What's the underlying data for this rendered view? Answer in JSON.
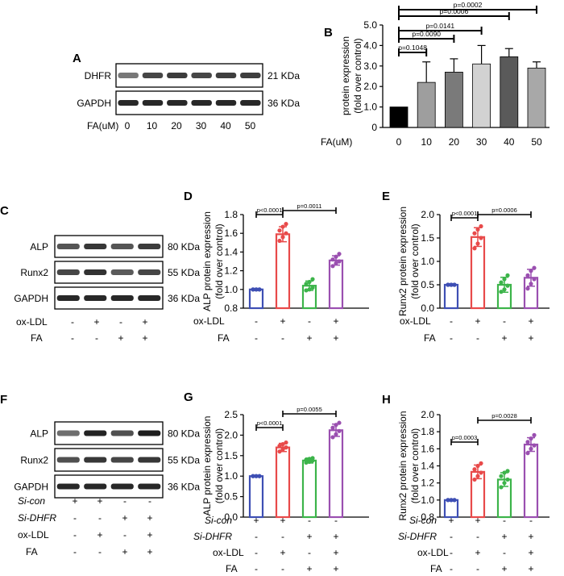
{
  "panels": {
    "A": {
      "letter": "A",
      "rows": [
        {
          "name": "DHFR",
          "kda": "21 KDa"
        },
        {
          "name": "GAPDH",
          "kda": "36 KDa"
        }
      ],
      "lane_label": "FA(uM)",
      "lanes": [
        "0",
        "10",
        "20",
        "30",
        "40",
        "50"
      ]
    },
    "C": {
      "letter": "C",
      "rows": [
        {
          "name": "ALP",
          "kda": "80 KDa"
        },
        {
          "name": "Runx2",
          "kda": "55 KDa"
        },
        {
          "name": "GAPDH",
          "kda": "36 KDa"
        }
      ],
      "treat_rows": [
        {
          "label": "ox-LDL",
          "signs": [
            "-",
            "+",
            "-",
            "+"
          ]
        },
        {
          "label": "FA",
          "signs": [
            "-",
            "-",
            "+",
            "+"
          ]
        }
      ]
    },
    "F": {
      "letter": "F",
      "rows": [
        {
          "name": "ALP",
          "kda": "80 KDa"
        },
        {
          "name": "Runx2",
          "kda": "55 KDa"
        },
        {
          "name": "GAPDH",
          "kda": "36 KDa"
        }
      ],
      "treat_rows": [
        {
          "label": "Si-con",
          "signs": [
            "+",
            "+",
            "-",
            "-"
          ]
        },
        {
          "label": "Si-DHFR",
          "signs": [
            "-",
            "-",
            "+",
            "+"
          ]
        },
        {
          "label": "ox-LDL",
          "signs": [
            "-",
            "+",
            "-",
            "+"
          ]
        },
        {
          "label": "FA",
          "signs": [
            "-",
            "-",
            "+",
            "+"
          ]
        }
      ]
    }
  },
  "chart_data": [
    {
      "panel": "B",
      "type": "bar",
      "ylabel": "protein expression (fold over control)",
      "ylabel_lines": [
        "protein expression",
        "(fold over control)"
      ],
      "ylim": [
        0,
        5
      ],
      "yticks": [
        "0",
        "1.0",
        "2.0",
        "3.0",
        "4.0",
        "5.0"
      ],
      "x_title": "FA(uM)",
      "categories": [
        "0",
        "10",
        "20",
        "30",
        "40",
        "50"
      ],
      "values": [
        1.0,
        2.2,
        2.7,
        3.1,
        3.45,
        2.9
      ],
      "errors": [
        0,
        1.0,
        0.65,
        0.9,
        0.4,
        0.3
      ],
      "colors": [
        "#000000",
        "#9e9e9e",
        "#7a7a7a",
        "#d2d2d2",
        "#5a5a5a",
        "#a8a8a8"
      ],
      "pvalues": [
        "p=0.1048",
        "p=0.0090",
        "p=0.0141",
        "p=0.0006",
        "p=0.0002"
      ]
    },
    {
      "panel": "D",
      "type": "bar",
      "style": "dots",
      "ylabel": "ALP protein expression (fold over control)",
      "ylabel_lines": [
        "ALP protein expression",
        "(fold over control)"
      ],
      "ylim": [
        0.8,
        1.8
      ],
      "yticks": [
        "0.8",
        "1.0",
        "1.2",
        "1.4",
        "1.6",
        "1.8"
      ],
      "values": [
        1.0,
        1.59,
        1.04,
        1.31
      ],
      "errors": [
        0.01,
        0.08,
        0.05,
        0.05
      ],
      "points": [
        [
          1.0,
          1.0,
          1.0,
          1.0,
          1.0,
          1.0
        ],
        [
          1.52,
          1.56,
          1.6,
          1.63,
          1.67,
          1.7
        ],
        [
          0.99,
          1.0,
          1.02,
          1.06,
          1.08,
          1.11
        ],
        [
          1.25,
          1.28,
          1.3,
          1.32,
          1.35,
          1.38
        ]
      ],
      "colors": [
        "#3e4fb4",
        "#e84a4a",
        "#3cb44a",
        "#9a4fb0"
      ],
      "rows": [
        {
          "label": "ox-LDL",
          "signs": [
            "-",
            "+",
            "-",
            "+"
          ]
        },
        {
          "label": "FA",
          "signs": [
            "-",
            "-",
            "+",
            "+"
          ]
        }
      ],
      "pvalues": [
        "p<0.0001",
        "p=0.0011"
      ]
    },
    {
      "panel": "E",
      "type": "bar",
      "style": "dots",
      "ylabel": "Runx2 protein expression (fold over control)",
      "ylabel_lines": [
        "Runx2 protein expression",
        "(fold over control)"
      ],
      "ylim": [
        0,
        2
      ],
      "yticks": [
        "0.0",
        "0.5",
        "1.0",
        "1.5",
        "2.0"
      ],
      "values": [
        0.5,
        1.52,
        0.5,
        0.65
      ],
      "errors": [
        0.02,
        0.2,
        0.16,
        0.18
      ],
      "points": [
        [
          0.5,
          0.5,
          0.5,
          0.5,
          0.5,
          0.5
        ],
        [
          1.28,
          1.38,
          1.5,
          1.6,
          1.68,
          1.75
        ],
        [
          0.35,
          0.4,
          0.48,
          0.55,
          0.62,
          0.7
        ],
        [
          0.42,
          0.52,
          0.62,
          0.7,
          0.8,
          0.86
        ]
      ],
      "colors": [
        "#3e4fb4",
        "#e84a4a",
        "#3cb44a",
        "#9a4fb0"
      ],
      "rows": [
        {
          "label": "ox-LDL",
          "signs": [
            "-",
            "+",
            "-",
            "+"
          ]
        },
        {
          "label": "FA",
          "signs": [
            "-",
            "-",
            "+",
            "+"
          ]
        }
      ],
      "pvalues": [
        "p<0.0001",
        "p=0.0006"
      ]
    },
    {
      "panel": "G",
      "type": "bar",
      "style": "dots",
      "ylabel": "ALP protein expression (fold over control)",
      "ylabel_lines": [
        "ALP protein expression",
        "(fold over control)"
      ],
      "ylim": [
        0,
        2.5
      ],
      "yticks": [
        "0.0",
        "0.5",
        "1.0",
        "1.5",
        "2.0",
        "2.5"
      ],
      "values": [
        1.0,
        1.7,
        1.38,
        2.12
      ],
      "errors": [
        0.01,
        0.1,
        0.06,
        0.15
      ],
      "points": [
        [
          1.0,
          1.0,
          1.0,
          1.0,
          1.0,
          1.0
        ],
        [
          1.6,
          1.65,
          1.7,
          1.74,
          1.78,
          1.82
        ],
        [
          1.33,
          1.35,
          1.38,
          1.4,
          1.42,
          1.44
        ],
        [
          1.95,
          2.02,
          2.1,
          2.18,
          2.25,
          2.3
        ]
      ],
      "colors": [
        "#3e4fb4",
        "#e84a4a",
        "#3cb44a",
        "#9a4fb0"
      ],
      "rows": [
        {
          "label": "Si-con",
          "signs": [
            "+",
            "+",
            "-",
            "-"
          ]
        },
        {
          "label": "Si-DHFR",
          "signs": [
            "-",
            "-",
            "+",
            "+"
          ]
        },
        {
          "label": "ox-LDL",
          "signs": [
            "-",
            "+",
            "-",
            "+"
          ]
        },
        {
          "label": "FA",
          "signs": [
            "-",
            "-",
            "+",
            "+"
          ]
        }
      ],
      "pvalues": [
        "p<0.0001",
        "p=0.0055"
      ]
    },
    {
      "panel": "H",
      "type": "bar",
      "style": "dots",
      "ylabel": "Runx2 protein expression (fold over control)",
      "ylabel_lines": [
        "Runx2 protein expression",
        "(fold over control)"
      ],
      "ylim": [
        0.8,
        2.0
      ],
      "yticks": [
        "0.8",
        "1.0",
        "1.2",
        "1.4",
        "1.6",
        "1.8",
        "2.0"
      ],
      "values": [
        1.0,
        1.33,
        1.24,
        1.65
      ],
      "errors": [
        0.01,
        0.08,
        0.08,
        0.08
      ],
      "points": [
        [
          1.0,
          1.0,
          1.0,
          1.0,
          1.0,
          1.0
        ],
        [
          1.24,
          1.28,
          1.32,
          1.36,
          1.4,
          1.43
        ],
        [
          1.15,
          1.2,
          1.24,
          1.28,
          1.32,
          1.34
        ],
        [
          1.55,
          1.6,
          1.64,
          1.68,
          1.72,
          1.76
        ]
      ],
      "colors": [
        "#3e4fb4",
        "#e84a4a",
        "#3cb44a",
        "#9a4fb0"
      ],
      "rows": [
        {
          "label": "Si-con",
          "signs": [
            "+",
            "+",
            "-",
            "-"
          ]
        },
        {
          "label": "Si-DHFR",
          "signs": [
            "-",
            "-",
            "+",
            "+"
          ]
        },
        {
          "label": "ox-LDL",
          "signs": [
            "-",
            "+",
            "-",
            "+"
          ]
        },
        {
          "label": "FA",
          "signs": [
            "-",
            "-",
            "+",
            "+"
          ]
        }
      ],
      "pvalues": [
        "p=0.0003",
        "p=0.0028"
      ]
    }
  ]
}
